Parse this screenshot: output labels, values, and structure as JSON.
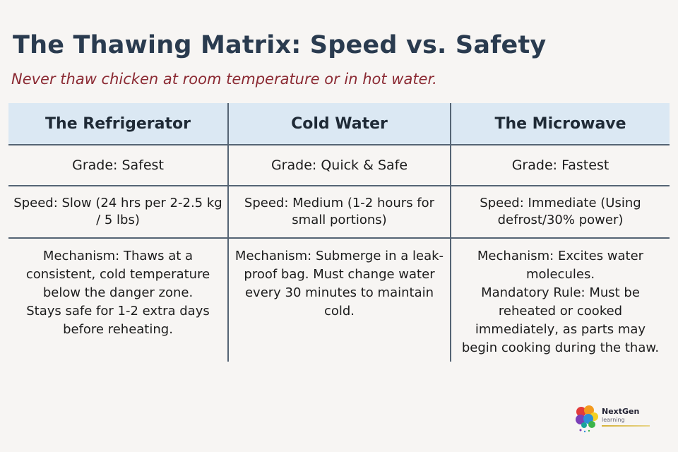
{
  "title": "The Thawing Matrix: Speed vs. Safety",
  "subtitle": "Never thaw chicken at room temperature or in hot water.",
  "headers": [
    "The Refrigerator",
    "Cold Water",
    "The Microwave"
  ],
  "grades": [
    "Grade: Safest",
    "Grade: Quick & Safe",
    "Grade: Fastest"
  ],
  "speeds": [
    "Speed: Slow (24 hrs per 2-2.5 kg / 5 lbs)",
    "Speed: Medium (1-2 hours for small portions)",
    "Speed: Immediate (Using defrost/30% power)"
  ],
  "mechanisms": [
    "Mechanism: Thaws at a consistent, cold temperature below the danger zone.",
    "Mechanism: Submerge in a leak-proof bag. Must change water every 30 minutes to maintain cold.",
    "Mechanism: Excites water molecules."
  ],
  "rules": [
    "Stays safe for 1-2 extra days before reheating.",
    "",
    "Mandatory Rule: Must be reheated or cooked immediately, as parts may begin cooking during the thaw."
  ],
  "logo": {
    "name": "NextGen",
    "sub": "learning"
  },
  "colors": {
    "header_bg": "#dbe8f3",
    "title": "#2a3b4f",
    "subtitle": "#8b2a33",
    "rule": "#556474"
  }
}
